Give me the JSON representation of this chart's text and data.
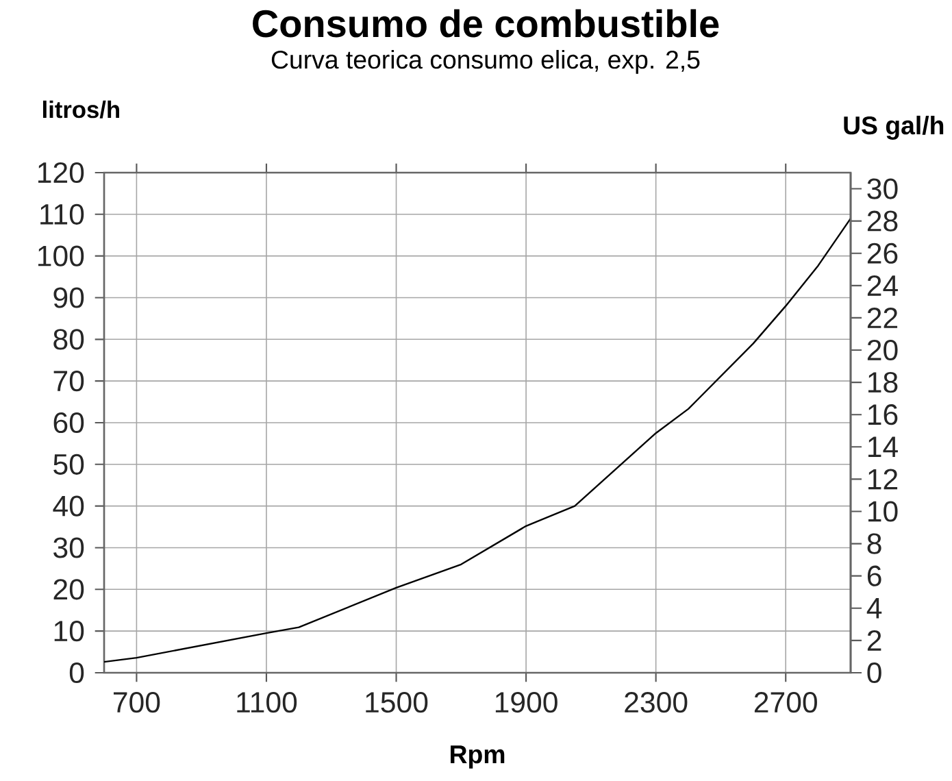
{
  "chart_data": {
    "type": "line",
    "title": "Consumo de combustible",
    "subtitle": "Curva teorica consumo elica, exp. 2,5",
    "ylabel": "litros/h",
    "y2label": "US gal/h",
    "xlabel": "Rpm",
    "x": [
      600,
      700,
      1100,
      1200,
      1500,
      1700,
      1900,
      2050,
      2300,
      2400,
      2600,
      2700,
      2800,
      2900
    ],
    "series": [
      {
        "color": "#000000",
        "values": [
          2.6,
          3.6,
          9.5,
          10.9,
          20.4,
          26,
          35.2,
          40,
          57.5,
          63.3,
          79,
          88,
          97.7,
          109
        ]
      }
    ],
    "xlim": [
      600,
      2900
    ],
    "xticks": [
      700,
      1100,
      1500,
      1900,
      2300,
      2700
    ],
    "ylim": [
      0,
      120
    ],
    "yticks": [
      0,
      10,
      20,
      30,
      40,
      50,
      60,
      70,
      80,
      90,
      100,
      110,
      120
    ],
    "y2lim": [
      0,
      31
    ],
    "y2ticks": [
      0,
      2,
      4,
      6,
      8,
      10,
      12,
      14,
      16,
      18,
      20,
      22,
      24,
      26,
      28,
      30
    ],
    "grid": true,
    "marker": "none",
    "line_style": "solid"
  }
}
